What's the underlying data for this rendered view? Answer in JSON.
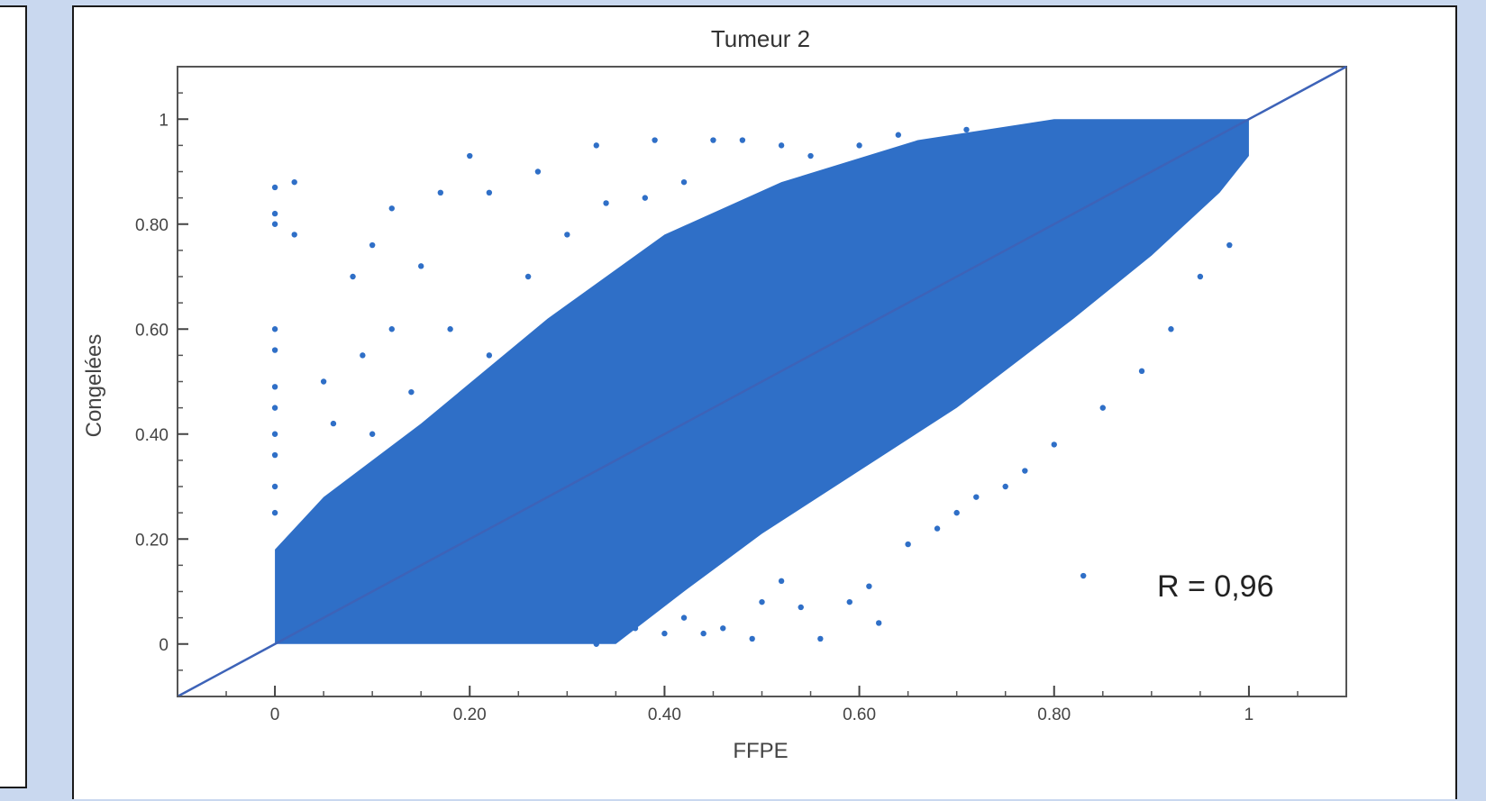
{
  "chart_data": {
    "type": "scatter",
    "title": "Tumeur 2",
    "xlabel": "FFPE",
    "ylabel": "Congelées",
    "xlim": [
      -0.1,
      1.1
    ],
    "ylim": [
      -0.1,
      1.1
    ],
    "xticks": [
      0,
      0.2,
      0.4,
      0.6,
      0.8,
      1
    ],
    "xtick_labels": [
      "0",
      "0.20",
      "0.40",
      "0.60",
      "0.80",
      "1"
    ],
    "yticks": [
      0,
      0.2,
      0.4,
      0.6,
      0.8,
      1
    ],
    "ytick_labels": [
      "0",
      "0.20",
      "0.40",
      "0.60",
      "0.80",
      "1"
    ],
    "reference_line": {
      "from": [
        -0.1,
        -0.1
      ],
      "to": [
        1.1,
        1.1
      ]
    },
    "annotation": "R = 0,96",
    "point_color": "#2f6fc7",
    "grid": false,
    "legend": "none",
    "series": [
      {
        "values": [
          [
            0.0,
            0.87
          ],
          [
            0.0,
            0.82
          ],
          [
            0.0,
            0.8
          ],
          [
            0.02,
            0.78
          ],
          [
            0.0,
            0.6
          ],
          [
            0.0,
            0.56
          ],
          [
            0.0,
            0.49
          ],
          [
            0.0,
            0.45
          ],
          [
            0.0,
            0.4
          ],
          [
            0.0,
            0.36
          ],
          [
            0.0,
            0.3
          ],
          [
            0.0,
            0.25
          ],
          [
            0.02,
            0.88
          ],
          [
            0.08,
            0.7
          ],
          [
            0.12,
            0.83
          ],
          [
            0.1,
            0.76
          ],
          [
            0.17,
            0.86
          ],
          [
            0.2,
            0.93
          ],
          [
            0.22,
            0.86
          ],
          [
            0.27,
            0.9
          ],
          [
            0.33,
            0.95
          ],
          [
            0.39,
            0.96
          ],
          [
            0.45,
            0.96
          ],
          [
            0.48,
            0.96
          ],
          [
            0.52,
            0.95
          ],
          [
            0.64,
            0.97
          ],
          [
            0.71,
            0.98
          ],
          [
            0.15,
            0.72
          ],
          [
            0.12,
            0.6
          ],
          [
            0.09,
            0.55
          ],
          [
            0.05,
            0.5
          ],
          [
            0.06,
            0.42
          ],
          [
            0.1,
            0.4
          ],
          [
            0.14,
            0.48
          ],
          [
            0.18,
            0.6
          ],
          [
            0.22,
            0.55
          ],
          [
            0.26,
            0.7
          ],
          [
            0.3,
            0.78
          ],
          [
            0.34,
            0.84
          ],
          [
            0.38,
            0.85
          ],
          [
            0.42,
            0.88
          ],
          [
            0.55,
            0.93
          ],
          [
            0.6,
            0.95
          ],
          [
            0.83,
            0.13
          ],
          [
            0.62,
            0.04
          ],
          [
            0.61,
            0.11
          ],
          [
            0.59,
            0.08
          ],
          [
            0.54,
            0.07
          ],
          [
            0.56,
            0.01
          ],
          [
            0.49,
            0.01
          ],
          [
            0.46,
            0.03
          ],
          [
            0.44,
            0.02
          ],
          [
            0.37,
            0.03
          ],
          [
            0.33,
            0.0
          ],
          [
            0.77,
            0.33
          ],
          [
            0.8,
            0.38
          ],
          [
            0.85,
            0.45
          ],
          [
            0.89,
            0.52
          ],
          [
            0.92,
            0.6
          ],
          [
            0.95,
            0.7
          ],
          [
            0.98,
            0.76
          ],
          [
            0.7,
            0.25
          ],
          [
            0.65,
            0.19
          ],
          [
            0.72,
            0.28
          ],
          [
            0.75,
            0.3
          ],
          [
            0.68,
            0.22
          ],
          [
            0.4,
            0.02
          ],
          [
            0.42,
            0.05
          ],
          [
            0.5,
            0.08
          ],
          [
            0.52,
            0.12
          ]
        ]
      }
    ]
  }
}
